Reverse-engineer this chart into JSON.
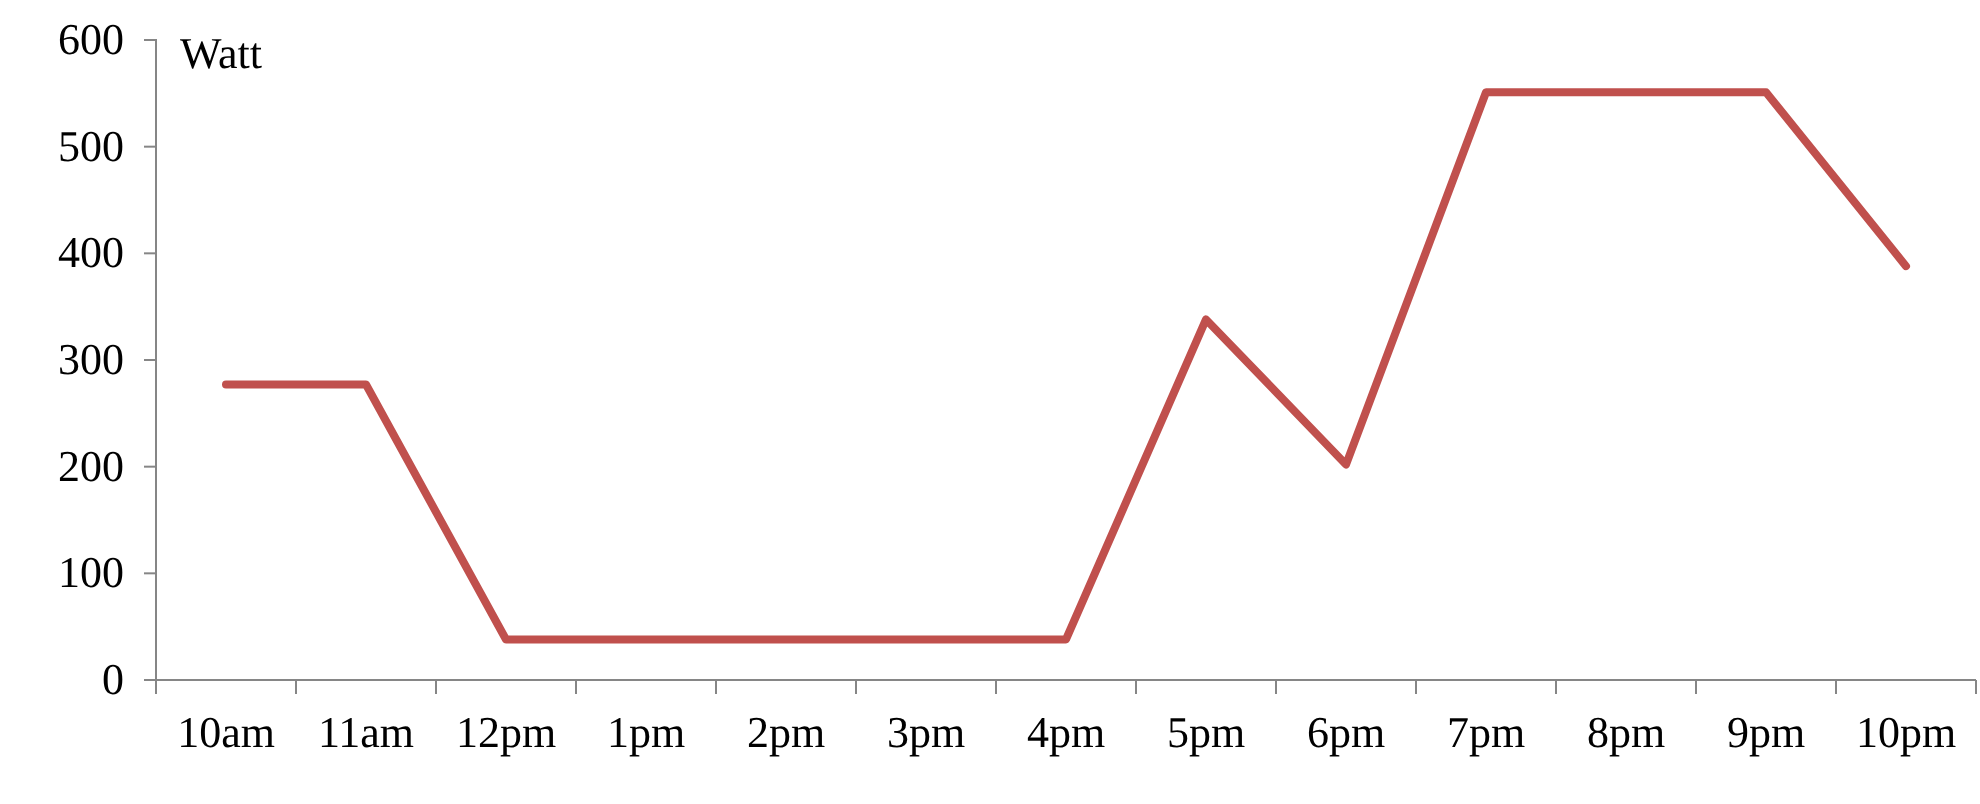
{
  "chart_data": {
    "type": "line",
    "ylabel": "Watt",
    "categories": [
      "10am",
      "11am",
      "12pm",
      "1pm",
      "2pm",
      "3pm",
      "4pm",
      "5pm",
      "6pm",
      "7pm",
      "8pm",
      "9pm",
      "10pm"
    ],
    "series": [
      {
        "color": "#c0504d",
        "values": [
          277,
          277,
          38,
          38,
          38,
          38,
          38,
          338,
          202,
          551,
          551,
          551,
          388
        ]
      }
    ],
    "ylim": [
      0,
      600
    ],
    "yticks": [
      0,
      100,
      200,
      300,
      400,
      500,
      600
    ],
    "grid": false,
    "legend": false,
    "marker": "none",
    "line_style": "solid"
  }
}
